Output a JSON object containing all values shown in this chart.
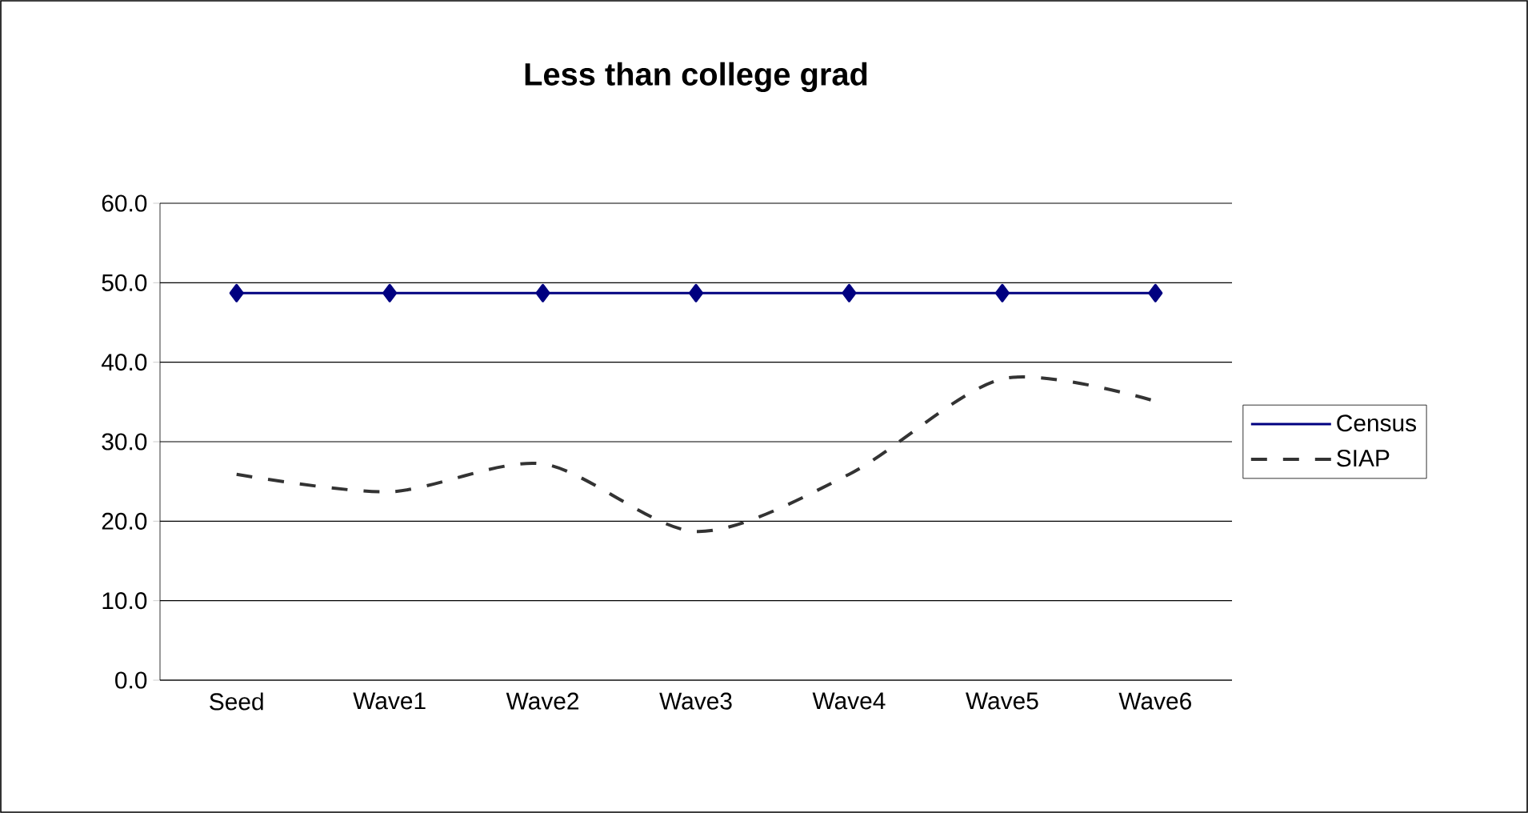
{
  "chart_data": {
    "type": "line",
    "title": "Less than college grad",
    "categories": [
      "Seed",
      "Wave1",
      "Wave2",
      "Wave3",
      "Wave4",
      "Wave5",
      "Wave6"
    ],
    "series": [
      {
        "name": "Census",
        "color": "#000080",
        "marker": "diamond",
        "line_style": "solid",
        "values": [
          48.7,
          48.7,
          48.7,
          48.7,
          48.7,
          48.7,
          48.7
        ]
      },
      {
        "name": "SIAP",
        "color": "#333333",
        "marker": "none",
        "line_style": "dashed",
        "values": [
          25.9,
          23.7,
          27.2,
          18.7,
          25.9,
          37.9,
          35.1
        ]
      }
    ],
    "ylim": [
      0,
      60
    ],
    "yticks": [
      {
        "value": 0,
        "label": "0.0"
      },
      {
        "value": 10,
        "label": "10.0"
      },
      {
        "value": 20,
        "label": "20.0"
      },
      {
        "value": 30,
        "label": "30.0"
      },
      {
        "value": 40,
        "label": "40.0"
      },
      {
        "value": 50,
        "label": "50.0"
      },
      {
        "value": 60,
        "label": "60.0"
      }
    ],
    "grid": "y",
    "legend": "right"
  }
}
